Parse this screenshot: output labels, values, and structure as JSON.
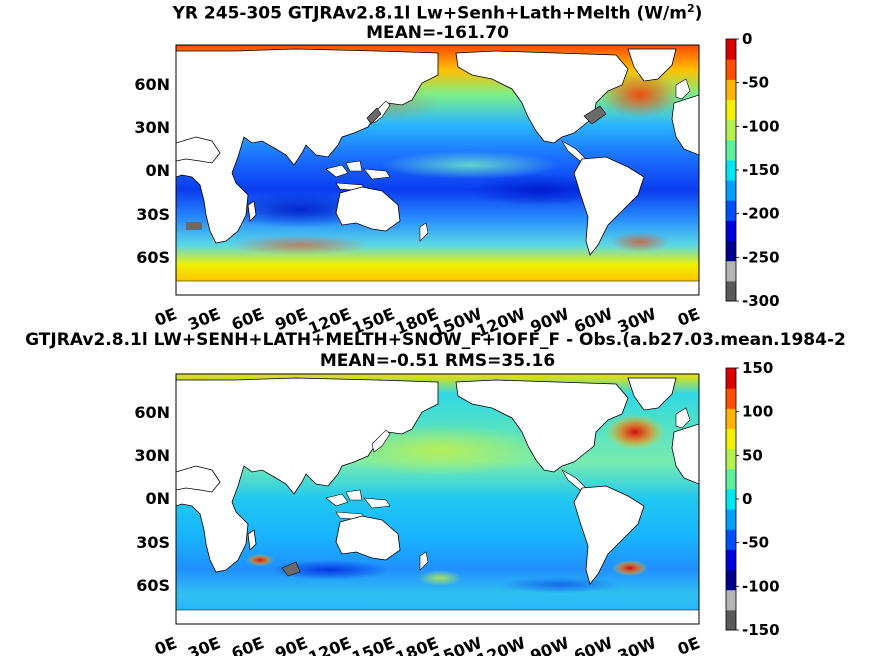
{
  "panels": [
    {
      "title_line1": "YR 245-305 GTJRAv2.8.1l Lw+Senh+Lath+Melth (W/m",
      "title_sup": "2",
      "title_close": ")",
      "title_line2": "MEAN=-161.70",
      "colorbar": {
        "ticks": [
          "0",
          "-50",
          "-100",
          "-150",
          "-200",
          "-250",
          "-300"
        ],
        "min": -300,
        "max": 0
      }
    },
    {
      "title_line1": "GTJRAv2.8.1l LW+SENH+LATH+MELTH+SNOW_F+IOFF_F - Obs.(a.b27.03.mean.1984-2",
      "title_line2": "MEAN=-0.51 RMS=35.16",
      "colorbar": {
        "ticks": [
          "150",
          "100",
          "50",
          "0",
          "-50",
          "-100",
          "-150"
        ],
        "min": -150,
        "max": 150
      }
    }
  ],
  "lat_ticks": [
    "60N",
    "30N",
    "0N",
    "30S",
    "60S"
  ],
  "lon_ticks": [
    "0E",
    "30E",
    "60E",
    "90E",
    "120E",
    "150E",
    "180E",
    "150W",
    "120W",
    "90W",
    "60W",
    "30W",
    "0E"
  ],
  "chart_data": [
    {
      "type": "heatmap",
      "title": "YR 245-305 GTJRAv2.8.1l Lw+Senh+Lath+Melth (W/m2) MEAN=-161.70",
      "mean": -161.7,
      "x_range": [
        "0E",
        "0E"
      ],
      "y_range": [
        "90S",
        "90N"
      ],
      "colorbar_range": [
        -300,
        0
      ],
      "colorbar_ticks": [
        0,
        -50,
        -100,
        -150,
        -200,
        -250,
        -300
      ],
      "colormap_colors": [
        "#5a5a5a",
        "#b4b4b4",
        "#00008c",
        "#0000dc",
        "#0050ff",
        "#00a0ff",
        "#00e6f0",
        "#5af0a0",
        "#b4f050",
        "#f0f000",
        "#ffb400",
        "#ff5000",
        "#dc0000"
      ]
    },
    {
      "type": "heatmap",
      "title": "GTJRAv2.8.1l LW+SENH+LATH+MELTH+SNOW_F+IOFF_F - Obs.(a.b27.03.mean.1984-2 MEAN=-0.51 RMS=35.16",
      "mean": -0.51,
      "rms": 35.16,
      "x_range": [
        "0E",
        "0E"
      ],
      "y_range": [
        "90S",
        "90N"
      ],
      "colorbar_range": [
        -150,
        150
      ],
      "colorbar_ticks": [
        150,
        100,
        50,
        0,
        -50,
        -100,
        -150
      ],
      "colormap_colors": [
        "#5a5a5a",
        "#b4b4b4",
        "#00008c",
        "#0000dc",
        "#0050ff",
        "#00a0ff",
        "#00e6f0",
        "#5af0a0",
        "#b4f050",
        "#f0f000",
        "#ffb400",
        "#ff5000",
        "#dc0000"
      ]
    }
  ]
}
